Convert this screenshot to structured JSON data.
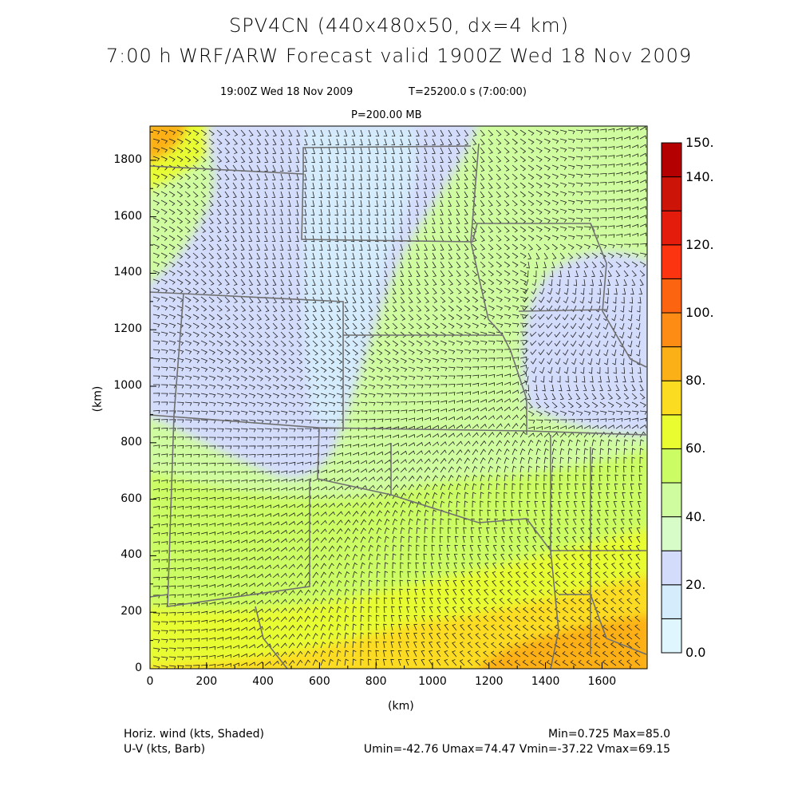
{
  "header": {
    "title_line1": "SPV4CN (440x480x50, dx=4 km)",
    "title_line2": "7:00 h WRF/ARW Forecast valid 1900Z Wed 18 Nov 2009",
    "valid_time": "19:00Z Wed 18 Nov 2009",
    "model_time": "T=25200.0 s (7:00:00)",
    "level": "P=200.00 MB"
  },
  "axes": {
    "x_label": "(km)",
    "y_label": "(km)",
    "x_range": [
      0,
      1760
    ],
    "y_range": [
      0,
      1920
    ],
    "x_ticks": [
      "0",
      "200",
      "400",
      "600",
      "800",
      "1000",
      "1200",
      "1400",
      "1600"
    ],
    "y_ticks": [
      "0",
      "200",
      "400",
      "600",
      "800",
      "1000",
      "1200",
      "1400",
      "1600",
      "1800"
    ]
  },
  "colorbar": {
    "labels": [
      "0.0",
      "20.",
      "40.",
      "60.",
      "80.",
      "100.",
      "120.",
      "140.",
      "150."
    ],
    "label_values": [
      0,
      20,
      40,
      60,
      80,
      100,
      120,
      140,
      150
    ],
    "bounds": [
      0,
      10,
      20,
      30,
      40,
      50,
      60,
      70,
      80,
      90,
      100,
      110,
      120,
      130,
      140,
      150
    ],
    "colors": [
      "#e0f6ff",
      "#d4ecfc",
      "#d4dcfc",
      "#d8fcc8",
      "#d0fca0",
      "#ccfc64",
      "#e8fc30",
      "#fcdc20",
      "#fcb018",
      "#fc8c14",
      "#fc6410",
      "#fc3410",
      "#e41c0c",
      "#cc1408",
      "#b40000"
    ]
  },
  "footer": {
    "field1": "Horiz. wind (kts, Shaded)",
    "field2": "U-V (kts, Barb)",
    "minmax": "Min=0.725 Max=85.0",
    "uv_stats": "Umin=-42.76 Umax=74.47 Vmin=-37.22 Vmax=69.15"
  }
}
